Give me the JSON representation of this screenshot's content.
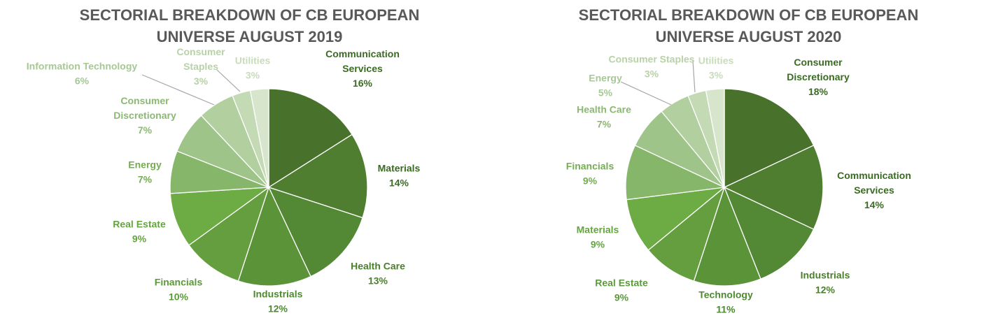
{
  "chart_data": [
    {
      "type": "pie",
      "title": "SECTORIAL BREAKDOWN OF CB EUROPEAN UNIVERSE AUGUST 2019",
      "title_lines": [
        "SECTORIAL BREAKDOWN OF CB EUROPEAN",
        "UNIVERSE AUGUST 2019"
      ],
      "slices": [
        {
          "label": "Communication Services",
          "label_lines": [
            "Communication",
            "Services"
          ],
          "value": 16,
          "value_label": "16%",
          "color": "#48722b",
          "label_color": "#3a6b22"
        },
        {
          "label": "Materials",
          "label_lines": [
            "Materials"
          ],
          "value": 14,
          "value_label": "14%",
          "color": "#4f7e31",
          "label_color": "#3a6b22"
        },
        {
          "label": "Health Care",
          "label_lines": [
            "Health Care"
          ],
          "value": 13,
          "value_label": "13%",
          "color": "#538935",
          "label_color": "#4a7f2c"
        },
        {
          "label": "Industrials",
          "label_lines": [
            "Industrials"
          ],
          "value": 12,
          "value_label": "12%",
          "color": "#5b9339",
          "label_color": "#4e8a30"
        },
        {
          "label": "Financials",
          "label_lines": [
            "Financials"
          ],
          "value": 10,
          "value_label": "10%",
          "color": "#649e3f",
          "label_color": "#5a9a37"
        },
        {
          "label": "Real Estate",
          "label_lines": [
            "Real Estate"
          ],
          "value": 9,
          "value_label": "9%",
          "color": "#6dab45",
          "label_color": "#63a63e"
        },
        {
          "label": "Energy",
          "label_lines": [
            "Energy"
          ],
          "value": 7,
          "value_label": "7%",
          "color": "#86b66a",
          "label_color": "#74ad52"
        },
        {
          "label": "Consumer Discretionary",
          "label_lines": [
            "Consumer",
            "Discretionary"
          ],
          "value": 7,
          "value_label": "7%",
          "color": "#9ec48a",
          "label_color": "#8cb874"
        },
        {
          "label": "Information Technology",
          "label_lines": [
            "Information Technology"
          ],
          "value": 6,
          "value_label": "6%",
          "color": "#b2d09f",
          "label_color": "#a6c896",
          "leader": true
        },
        {
          "label": "Consumer Staples",
          "label_lines": [
            "Consumer",
            "Staples"
          ],
          "value": 3,
          "value_label": "3%",
          "color": "#c4dab5",
          "label_color": "#b9d1a8",
          "leader": true
        },
        {
          "label": "Utilities",
          "label_lines": [
            "Utilities"
          ],
          "value": 3,
          "value_label": "3%",
          "color": "#d6e5cb",
          "label_color": "#c8dcbb"
        }
      ]
    },
    {
      "type": "pie",
      "title": "SECTORIAL BREAKDOWN OF CB EUROPEAN UNIVERSE AUGUST 2020",
      "title_lines": [
        "SECTORIAL BREAKDOWN OF CB EUROPEAN",
        "UNIVERSE AUGUST 2020"
      ],
      "slices": [
        {
          "label": "Consumer Discretionary",
          "label_lines": [
            "Consumer",
            "Discretionary"
          ],
          "value": 18,
          "value_label": "18%",
          "color": "#48722b",
          "label_color": "#3a6b22"
        },
        {
          "label": "Communication Services",
          "label_lines": [
            "Communication",
            "Services"
          ],
          "value": 14,
          "value_label": "14%",
          "color": "#4f7e31",
          "label_color": "#3a6b22"
        },
        {
          "label": "Industrials",
          "label_lines": [
            "Industrials"
          ],
          "value": 12,
          "value_label": "12%",
          "color": "#538935",
          "label_color": "#4a7f2c"
        },
        {
          "label": "Technology",
          "label_lines": [
            "Technology"
          ],
          "value": 11,
          "value_label": "11%",
          "color": "#5b9339",
          "label_color": "#4e8a30"
        },
        {
          "label": "Real Estate",
          "label_lines": [
            "Real Estate"
          ],
          "value": 9,
          "value_label": "9%",
          "color": "#649e3f",
          "label_color": "#5a9a37"
        },
        {
          "label": "Materials",
          "label_lines": [
            "Materials"
          ],
          "value": 9,
          "value_label": "9%",
          "color": "#6dab45",
          "label_color": "#63a63e"
        },
        {
          "label": "Financials",
          "label_lines": [
            "Financials"
          ],
          "value": 9,
          "value_label": "9%",
          "color": "#86b66a",
          "label_color": "#74ad52"
        },
        {
          "label": "Health Care",
          "label_lines": [
            "Health Care"
          ],
          "value": 7,
          "value_label": "7%",
          "color": "#9ec48a",
          "label_color": "#8cb874"
        },
        {
          "label": "Energy",
          "label_lines": [
            "Energy"
          ],
          "value": 5,
          "value_label": "5%",
          "color": "#b2d09f",
          "label_color": "#a6c896",
          "leader": true
        },
        {
          "label": "Consumer Staples",
          "label_lines": [
            "Consumer Staples"
          ],
          "value": 3,
          "value_label": "3%",
          "color": "#c4dab5",
          "label_color": "#b9d1a8",
          "leader": true
        },
        {
          "label": "Utilities",
          "label_lines": [
            "Utilities"
          ],
          "value": 3,
          "value_label": "3%",
          "color": "#d6e5cb",
          "label_color": "#c8dcbb"
        }
      ]
    }
  ]
}
